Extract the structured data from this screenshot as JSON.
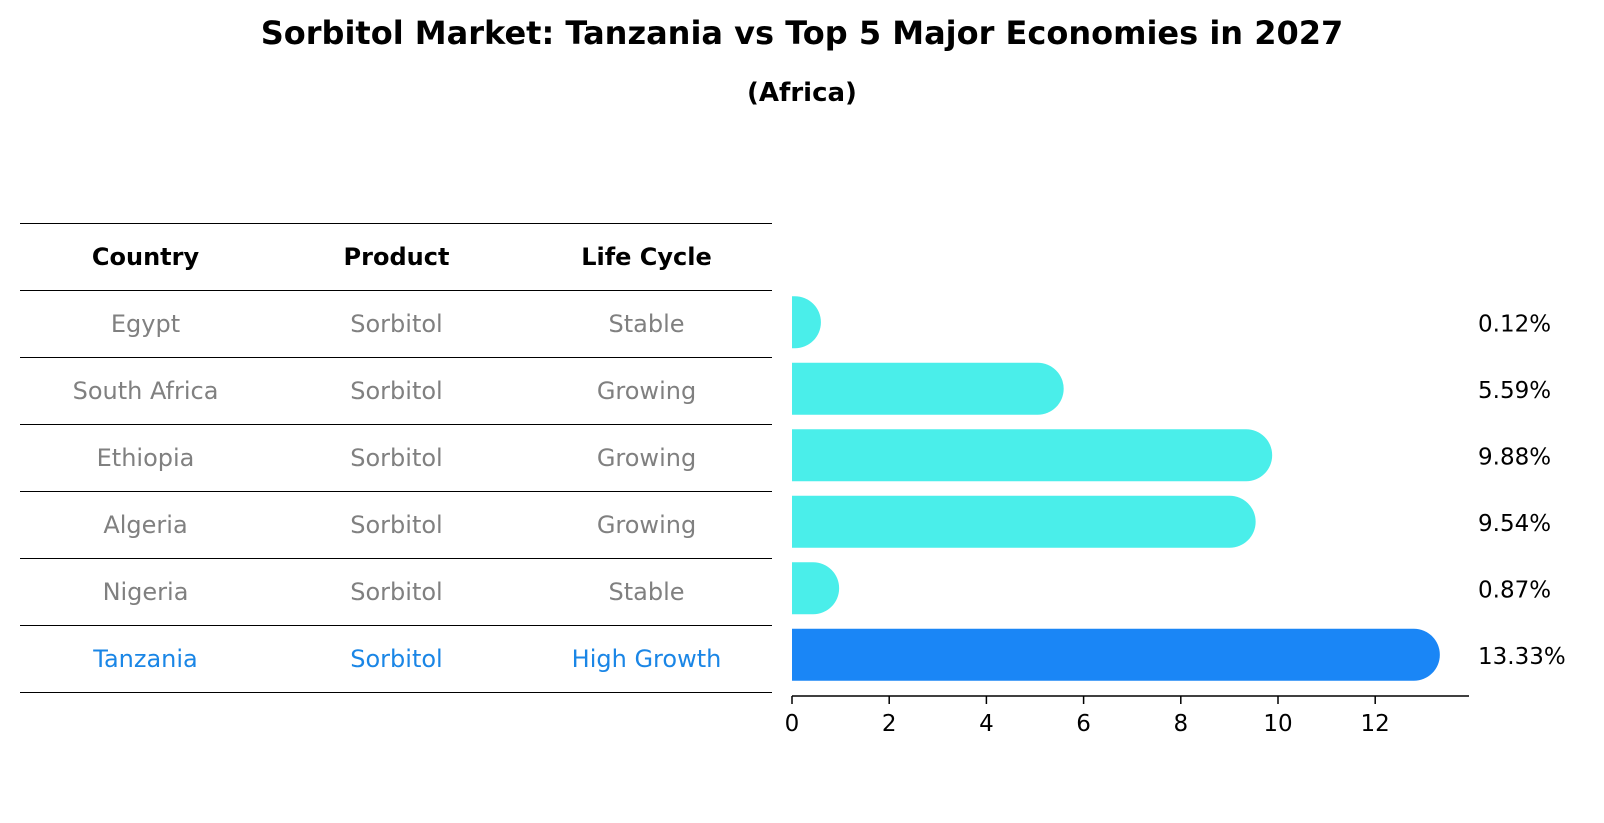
{
  "title": "Sorbitol Market: Tanzania vs Top 5 Major Economies in 2027",
  "subtitle": "(Africa)",
  "table": {
    "headers": [
      "Country",
      "Product",
      "Life Cycle"
    ],
    "rows": [
      [
        "Egypt",
        "Sorbitol",
        "Stable"
      ],
      [
        "South Africa",
        "Sorbitol",
        "Growing"
      ],
      [
        "Ethiopia",
        "Sorbitol",
        "Growing"
      ],
      [
        "Algeria",
        "Sorbitol",
        "Growing"
      ],
      [
        "Nigeria",
        "Sorbitol",
        "Stable"
      ],
      [
        "Tanzania",
        "Sorbitol",
        "High Growth"
      ]
    ],
    "highlight_row": 5
  },
  "colors": {
    "bar": "#4aeeea",
    "highlight_bar": "#1a86f6",
    "highlight_text": "#1a86e6",
    "muted_text": "#808080"
  },
  "chart_data": {
    "type": "bar",
    "orientation": "horizontal",
    "title": "Sorbitol Market: Tanzania vs Top 5 Major Economies in 2027",
    "subtitle": "(Africa)",
    "categories": [
      "Egypt",
      "South Africa",
      "Ethiopia",
      "Algeria",
      "Nigeria",
      "Tanzania"
    ],
    "values": [
      0.12,
      5.59,
      9.88,
      9.54,
      0.87,
      13.33
    ],
    "labels": [
      "0.12%",
      "5.59%",
      "9.88%",
      "9.54%",
      "0.87%",
      "13.33%"
    ],
    "xticks": [
      0,
      2,
      4,
      6,
      8,
      10,
      12
    ],
    "xlim": [
      0,
      14
    ],
    "xlabel": "",
    "ylabel": "",
    "grid": false,
    "highlight": "Tanzania"
  }
}
